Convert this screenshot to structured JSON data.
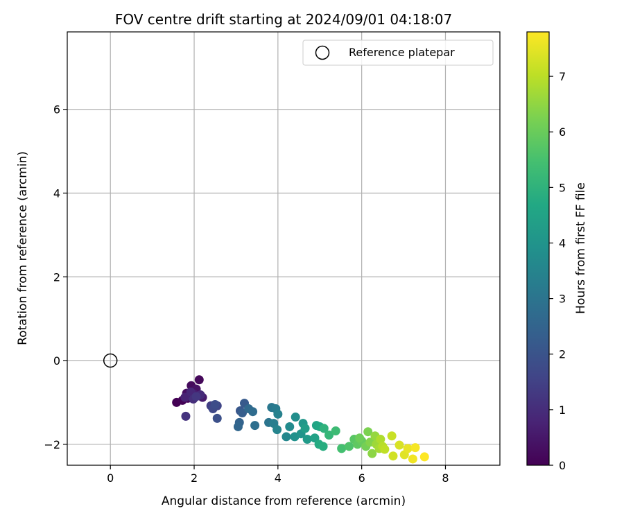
{
  "chart_data": {
    "type": "scatter",
    "title": "FOV centre drift starting at 2024/09/01 04:18:07",
    "xlabel": "Angular distance from reference (arcmin)",
    "ylabel": "Rotation from reference (arcmin)",
    "xlim": [
      -1.03,
      9.3
    ],
    "ylim": [
      -2.5,
      7.85
    ],
    "xticks": [
      0,
      2,
      4,
      6,
      8
    ],
    "yticks": [
      -2,
      0,
      2,
      4,
      6
    ],
    "xtick_labels": [
      "0",
      "2",
      "4",
      "6",
      "8"
    ],
    "ytick_labels": [
      "−2",
      "0",
      "2",
      "4",
      "6"
    ],
    "grid": true,
    "legend": {
      "position": "top-right",
      "label": "Reference platepar"
    },
    "reference": {
      "x": 0,
      "y": 0
    },
    "colorbar": {
      "label": "Hours from first FF file",
      "colormap": "viridis",
      "range": [
        0,
        7.8
      ],
      "ticks": [
        0,
        1,
        2,
        3,
        4,
        5,
        6,
        7
      ],
      "tick_labels": [
        "0",
        "1",
        "2",
        "3",
        "4",
        "5",
        "6",
        "7"
      ]
    },
    "points": [
      {
        "x": 1.58,
        "y": -1.0,
        "t": 0.0
      },
      {
        "x": 1.72,
        "y": -0.95,
        "t": 0.05
      },
      {
        "x": 1.85,
        "y": -0.9,
        "t": 0.1
      },
      {
        "x": 2.12,
        "y": -0.46,
        "t": 0.15
      },
      {
        "x": 1.93,
        "y": -0.6,
        "t": 0.2
      },
      {
        "x": 1.82,
        "y": -0.78,
        "t": 0.3
      },
      {
        "x": 2.05,
        "y": -0.68,
        "t": 0.35
      },
      {
        "x": 1.9,
        "y": -0.85,
        "t": 0.45
      },
      {
        "x": 2.2,
        "y": -0.88,
        "t": 0.55
      },
      {
        "x": 2.0,
        "y": -0.8,
        "t": 0.65
      },
      {
        "x": 1.78,
        "y": -0.88,
        "t": 0.75
      },
      {
        "x": 1.92,
        "y": -0.75,
        "t": 0.85
      },
      {
        "x": 2.15,
        "y": -0.82,
        "t": 0.95
      },
      {
        "x": 1.98,
        "y": -0.92,
        "t": 1.05
      },
      {
        "x": 1.8,
        "y": -1.33,
        "t": 1.15
      },
      {
        "x": 2.05,
        "y": -0.86,
        "t": 1.25
      },
      {
        "x": 2.4,
        "y": -1.08,
        "t": 1.45
      },
      {
        "x": 2.55,
        "y": -1.08,
        "t": 1.6
      },
      {
        "x": 2.45,
        "y": -1.15,
        "t": 1.7
      },
      {
        "x": 2.5,
        "y": -1.05,
        "t": 1.8
      },
      {
        "x": 2.55,
        "y": -1.38,
        "t": 1.9
      },
      {
        "x": 3.1,
        "y": -1.2,
        "t": 2.1
      },
      {
        "x": 3.2,
        "y": -1.02,
        "t": 2.2
      },
      {
        "x": 3.15,
        "y": -1.25,
        "t": 2.3
      },
      {
        "x": 3.08,
        "y": -1.48,
        "t": 2.45
      },
      {
        "x": 3.05,
        "y": -1.58,
        "t": 2.55
      },
      {
        "x": 3.3,
        "y": -1.15,
        "t": 2.65
      },
      {
        "x": 3.4,
        "y": -1.22,
        "t": 2.75
      },
      {
        "x": 3.45,
        "y": -1.55,
        "t": 2.85
      },
      {
        "x": 3.78,
        "y": -1.48,
        "t": 3.0
      },
      {
        "x": 3.85,
        "y": -1.12,
        "t": 3.1
      },
      {
        "x": 3.95,
        "y": -1.15,
        "t": 3.2
      },
      {
        "x": 3.9,
        "y": -1.5,
        "t": 3.3
      },
      {
        "x": 4.0,
        "y": -1.28,
        "t": 3.4
      },
      {
        "x": 3.98,
        "y": -1.65,
        "t": 3.5
      },
      {
        "x": 4.2,
        "y": -1.82,
        "t": 3.6
      },
      {
        "x": 4.28,
        "y": -1.58,
        "t": 3.7
      },
      {
        "x": 4.42,
        "y": -1.35,
        "t": 3.8
      },
      {
        "x": 4.4,
        "y": -1.82,
        "t": 3.9
      },
      {
        "x": 4.55,
        "y": -1.75,
        "t": 4.0
      },
      {
        "x": 4.6,
        "y": -1.5,
        "t": 4.1
      },
      {
        "x": 4.7,
        "y": -1.88,
        "t": 4.2
      },
      {
        "x": 4.65,
        "y": -1.62,
        "t": 4.3
      },
      {
        "x": 4.88,
        "y": -1.85,
        "t": 4.45
      },
      {
        "x": 4.92,
        "y": -1.55,
        "t": 4.55
      },
      {
        "x": 5.0,
        "y": -1.58,
        "t": 4.65
      },
      {
        "x": 4.98,
        "y": -2.0,
        "t": 4.75
      },
      {
        "x": 5.08,
        "y": -2.05,
        "t": 4.85
      },
      {
        "x": 5.1,
        "y": -1.62,
        "t": 5.0
      },
      {
        "x": 5.22,
        "y": -1.78,
        "t": 5.15
      },
      {
        "x": 5.38,
        "y": -1.68,
        "t": 5.3
      },
      {
        "x": 5.52,
        "y": -2.1,
        "t": 5.45
      },
      {
        "x": 5.7,
        "y": -2.05,
        "t": 5.6
      },
      {
        "x": 5.82,
        "y": -1.88,
        "t": 5.75
      },
      {
        "x": 5.9,
        "y": -2.0,
        "t": 5.85
      },
      {
        "x": 6.0,
        "y": -1.92,
        "t": 5.95
      },
      {
        "x": 5.95,
        "y": -1.85,
        "t": 6.05
      },
      {
        "x": 6.1,
        "y": -2.05,
        "t": 6.15
      },
      {
        "x": 6.15,
        "y": -1.7,
        "t": 6.25
      },
      {
        "x": 6.2,
        "y": -1.95,
        "t": 6.35
      },
      {
        "x": 6.25,
        "y": -2.22,
        "t": 6.45
      },
      {
        "x": 6.32,
        "y": -1.8,
        "t": 6.55
      },
      {
        "x": 6.35,
        "y": -2.0,
        "t": 6.65
      },
      {
        "x": 6.42,
        "y": -2.1,
        "t": 6.75
      },
      {
        "x": 6.45,
        "y": -1.88,
        "t": 6.85
      },
      {
        "x": 6.5,
        "y": -2.05,
        "t": 6.95
      },
      {
        "x": 6.55,
        "y": -2.12,
        "t": 7.05
      },
      {
        "x": 6.72,
        "y": -1.8,
        "t": 7.15
      },
      {
        "x": 6.75,
        "y": -2.28,
        "t": 7.25
      },
      {
        "x": 6.9,
        "y": -2.02,
        "t": 7.35
      },
      {
        "x": 7.02,
        "y": -2.25,
        "t": 7.45
      },
      {
        "x": 7.1,
        "y": -2.1,
        "t": 7.55
      },
      {
        "x": 7.22,
        "y": -2.35,
        "t": 7.65
      },
      {
        "x": 7.28,
        "y": -2.08,
        "t": 7.72
      },
      {
        "x": 7.5,
        "y": -2.3,
        "t": 7.8
      }
    ]
  }
}
